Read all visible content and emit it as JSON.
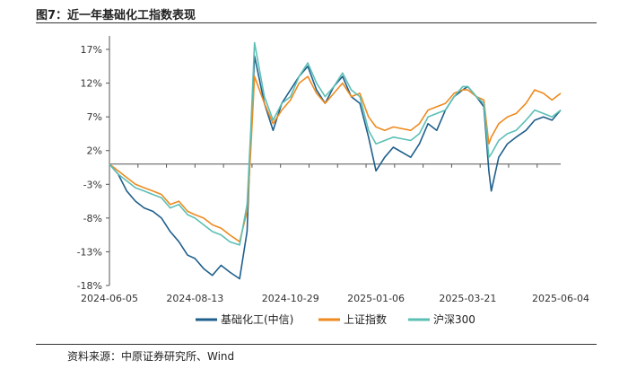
{
  "figure": {
    "title": "图7：近一年基础化工指数表现",
    "source": "资料来源：中原证券研究所、Wind"
  },
  "chart_data": {
    "type": "line",
    "xlabel": "",
    "ylabel": "",
    "ylim": [
      -18,
      19
    ],
    "y_ticks": [
      "17%",
      "12%",
      "7%",
      "2%",
      "-3%",
      "-8%",
      "-13%",
      "-18%"
    ],
    "y_tick_values": [
      17,
      12,
      7,
      2,
      -3,
      -8,
      -13,
      -18
    ],
    "x_ticks": [
      "2024-06-05",
      "2024-08-13",
      "2024-10-29",
      "2025-01-06",
      "2025-03-21",
      "2025-06-04"
    ],
    "x_range": [
      "2024-06-05",
      "2025-06-04"
    ],
    "grid": false,
    "legend_position": "bottom",
    "series": [
      {
        "name": "基础化工(中信)",
        "color": "#1f5f8b",
        "points": [
          [
            "2024-06-05",
            0
          ],
          [
            "2024-06-12",
            -1.5
          ],
          [
            "2024-06-19",
            -4
          ],
          [
            "2024-06-26",
            -5.5
          ],
          [
            "2024-07-03",
            -6.5
          ],
          [
            "2024-07-10",
            -7
          ],
          [
            "2024-07-17",
            -8
          ],
          [
            "2024-07-24",
            -10
          ],
          [
            "2024-07-31",
            -11.5
          ],
          [
            "2024-08-07",
            -13.5
          ],
          [
            "2024-08-13",
            -14
          ],
          [
            "2024-08-20",
            -15.5
          ],
          [
            "2024-08-27",
            -16.5
          ],
          [
            "2024-09-03",
            -15
          ],
          [
            "2024-09-10",
            -16
          ],
          [
            "2024-09-18",
            -17
          ],
          [
            "2024-09-24",
            -10
          ],
          [
            "2024-09-27",
            4
          ],
          [
            "2024-09-30",
            16
          ],
          [
            "2024-10-08",
            9
          ],
          [
            "2024-10-15",
            5
          ],
          [
            "2024-10-22",
            9
          ],
          [
            "2024-10-29",
            11
          ],
          [
            "2024-11-05",
            13
          ],
          [
            "2024-11-12",
            14.5
          ],
          [
            "2024-11-19",
            11
          ],
          [
            "2024-11-26",
            9
          ],
          [
            "2024-12-03",
            11.5
          ],
          [
            "2024-12-10",
            13
          ],
          [
            "2024-12-17",
            10
          ],
          [
            "2024-12-24",
            9
          ],
          [
            "2024-12-31",
            4
          ],
          [
            "2025-01-06",
            -1
          ],
          [
            "2025-01-13",
            1
          ],
          [
            "2025-01-20",
            2.5
          ],
          [
            "2025-02-03",
            1
          ],
          [
            "2025-02-10",
            3
          ],
          [
            "2025-02-17",
            6
          ],
          [
            "2025-02-24",
            5
          ],
          [
            "2025-03-03",
            8
          ],
          [
            "2025-03-10",
            10
          ],
          [
            "2025-03-17",
            11
          ],
          [
            "2025-03-21",
            11.5
          ],
          [
            "2025-03-28",
            10
          ],
          [
            "2025-04-03",
            8.5
          ],
          [
            "2025-04-07",
            -1
          ],
          [
            "2025-04-09",
            -4
          ],
          [
            "2025-04-15",
            1
          ],
          [
            "2025-04-22",
            3
          ],
          [
            "2025-04-29",
            4
          ],
          [
            "2025-05-07",
            5
          ],
          [
            "2025-05-14",
            6.5
          ],
          [
            "2025-05-21",
            7
          ],
          [
            "2025-05-28",
            6.5
          ],
          [
            "2025-06-04",
            8
          ]
        ]
      },
      {
        "name": "上证指数",
        "color": "#ee8a1f",
        "points": [
          [
            "2024-06-05",
            0
          ],
          [
            "2024-06-12",
            -1
          ],
          [
            "2024-06-19",
            -2
          ],
          [
            "2024-06-26",
            -3
          ],
          [
            "2024-07-03",
            -3.5
          ],
          [
            "2024-07-10",
            -4
          ],
          [
            "2024-07-17",
            -4.5
          ],
          [
            "2024-07-24",
            -6
          ],
          [
            "2024-07-31",
            -5.5
          ],
          [
            "2024-08-07",
            -7
          ],
          [
            "2024-08-13",
            -7.5
          ],
          [
            "2024-08-20",
            -8
          ],
          [
            "2024-08-27",
            -9
          ],
          [
            "2024-09-03",
            -9.5
          ],
          [
            "2024-09-10",
            -10.5
          ],
          [
            "2024-09-18",
            -11.5
          ],
          [
            "2024-09-24",
            -7
          ],
          [
            "2024-09-27",
            2
          ],
          [
            "2024-09-30",
            13
          ],
          [
            "2024-10-08",
            9
          ],
          [
            "2024-10-15",
            6
          ],
          [
            "2024-10-22",
            8
          ],
          [
            "2024-10-29",
            9.5
          ],
          [
            "2024-11-05",
            12
          ],
          [
            "2024-11-12",
            13
          ],
          [
            "2024-11-19",
            10.5
          ],
          [
            "2024-11-26",
            9
          ],
          [
            "2024-12-03",
            10.5
          ],
          [
            "2024-12-10",
            12
          ],
          [
            "2024-12-17",
            10
          ],
          [
            "2024-12-24",
            10.5
          ],
          [
            "2024-12-31",
            7
          ],
          [
            "2025-01-06",
            5.5
          ],
          [
            "2025-01-13",
            5
          ],
          [
            "2025-01-20",
            5.5
          ],
          [
            "2025-02-03",
            5
          ],
          [
            "2025-02-10",
            6
          ],
          [
            "2025-02-17",
            8
          ],
          [
            "2025-02-24",
            8.5
          ],
          [
            "2025-03-03",
            9
          ],
          [
            "2025-03-10",
            10.5
          ],
          [
            "2025-03-17",
            11
          ],
          [
            "2025-03-21",
            11
          ],
          [
            "2025-03-28",
            10
          ],
          [
            "2025-04-03",
            9.5
          ],
          [
            "2025-04-07",
            3
          ],
          [
            "2025-04-09",
            4
          ],
          [
            "2025-04-15",
            6
          ],
          [
            "2025-04-22",
            7
          ],
          [
            "2025-04-29",
            7.5
          ],
          [
            "2025-05-07",
            9
          ],
          [
            "2025-05-14",
            11
          ],
          [
            "2025-05-21",
            10.5
          ],
          [
            "2025-05-28",
            9.5
          ],
          [
            "2025-06-04",
            10.5
          ]
        ]
      },
      {
        "name": "沪深300",
        "color": "#5cbfb5",
        "points": [
          [
            "2024-06-05",
            0
          ],
          [
            "2024-06-12",
            -1.5
          ],
          [
            "2024-06-19",
            -2.5
          ],
          [
            "2024-06-26",
            -3.5
          ],
          [
            "2024-07-03",
            -4
          ],
          [
            "2024-07-10",
            -4.5
          ],
          [
            "2024-07-17",
            -5
          ],
          [
            "2024-07-24",
            -6.5
          ],
          [
            "2024-07-31",
            -6
          ],
          [
            "2024-08-07",
            -7.5
          ],
          [
            "2024-08-13",
            -8
          ],
          [
            "2024-08-20",
            -9
          ],
          [
            "2024-08-27",
            -10
          ],
          [
            "2024-09-03",
            -10.5
          ],
          [
            "2024-09-10",
            -11.5
          ],
          [
            "2024-09-18",
            -12
          ],
          [
            "2024-09-24",
            -6
          ],
          [
            "2024-09-27",
            5
          ],
          [
            "2024-09-30",
            18
          ],
          [
            "2024-10-08",
            10
          ],
          [
            "2024-10-15",
            6.5
          ],
          [
            "2024-10-22",
            9
          ],
          [
            "2024-10-29",
            10
          ],
          [
            "2024-11-05",
            13
          ],
          [
            "2024-11-12",
            15
          ],
          [
            "2024-11-19",
            12
          ],
          [
            "2024-11-26",
            10
          ],
          [
            "2024-12-03",
            11.5
          ],
          [
            "2024-12-10",
            13.5
          ],
          [
            "2024-12-17",
            11
          ],
          [
            "2024-12-24",
            10
          ],
          [
            "2024-12-31",
            5
          ],
          [
            "2025-01-06",
            3
          ],
          [
            "2025-01-13",
            3.5
          ],
          [
            "2025-01-20",
            4
          ],
          [
            "2025-02-03",
            3.5
          ],
          [
            "2025-02-10",
            4.5
          ],
          [
            "2025-02-17",
            7
          ],
          [
            "2025-02-24",
            7.5
          ],
          [
            "2025-03-03",
            8
          ],
          [
            "2025-03-10",
            10
          ],
          [
            "2025-03-17",
            11.5
          ],
          [
            "2025-03-21",
            11.5
          ],
          [
            "2025-03-28",
            10
          ],
          [
            "2025-04-03",
            9
          ],
          [
            "2025-04-07",
            1
          ],
          [
            "2025-04-09",
            1.5
          ],
          [
            "2025-04-15",
            3.5
          ],
          [
            "2025-04-22",
            4.5
          ],
          [
            "2025-04-29",
            5
          ],
          [
            "2025-05-07",
            6.5
          ],
          [
            "2025-05-14",
            8
          ],
          [
            "2025-05-21",
            7.5
          ],
          [
            "2025-05-28",
            7
          ],
          [
            "2025-06-04",
            8
          ]
        ]
      }
    ]
  }
}
